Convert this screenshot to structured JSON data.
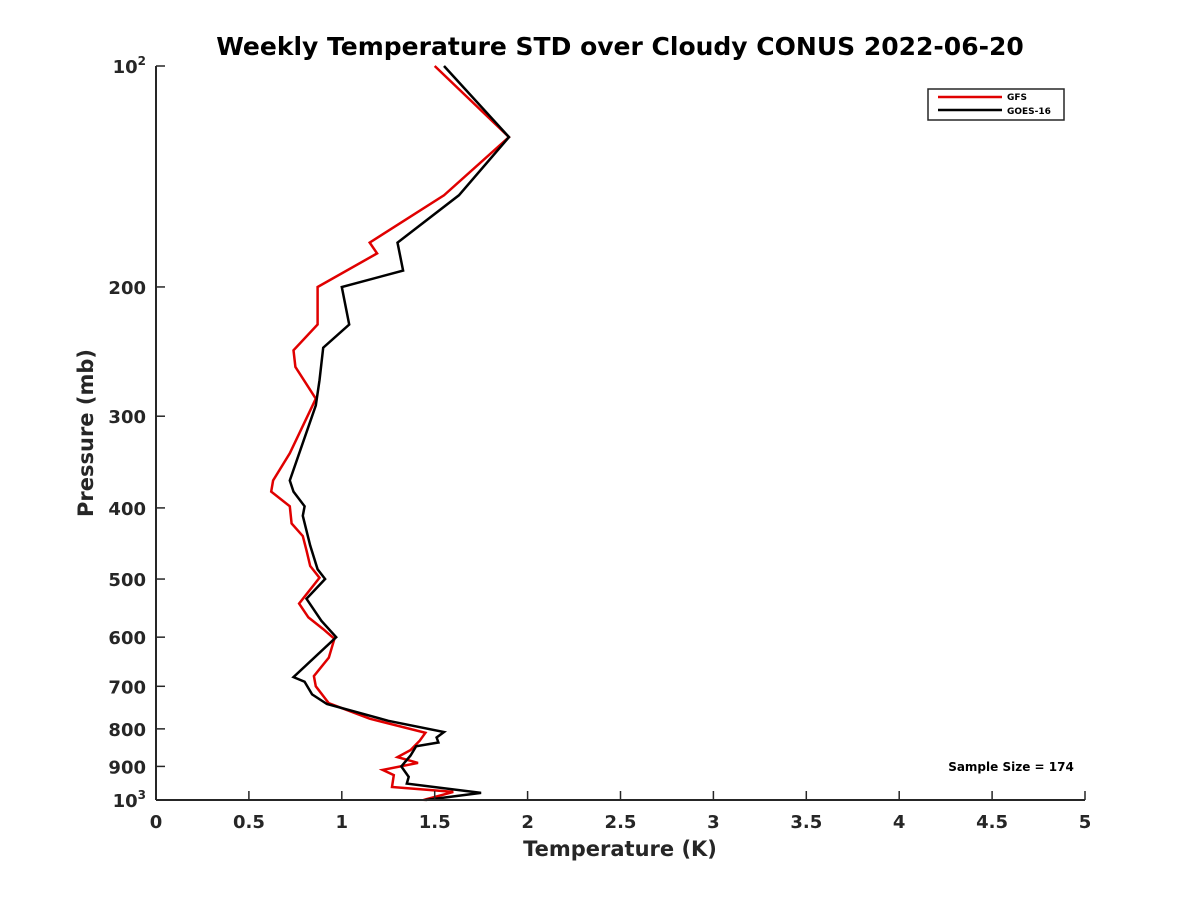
{
  "chart_data": {
    "type": "line",
    "title": "Weekly Temperature STD over Cloudy CONUS 2022-06-20",
    "xlabel": "Temperature (K)",
    "ylabel": "Pressure (mb)",
    "xlim": [
      0,
      5
    ],
    "ylim": [
      100,
      1000
    ],
    "y_scale": "log",
    "y_reversed": true,
    "x_ticks": [
      0,
      0.5,
      1,
      1.5,
      2,
      2.5,
      3,
      3.5,
      4,
      4.5,
      5
    ],
    "x_tick_labels": [
      "0",
      "0.5",
      "1",
      "1.5",
      "2",
      "2.5",
      "3",
      "3.5",
      "4",
      "4.5",
      "5"
    ],
    "y_ticks": [
      {
        "value": 100,
        "base": "10",
        "exp": "2"
      },
      {
        "value": 200,
        "label": "200"
      },
      {
        "value": 300,
        "label": "300"
      },
      {
        "value": 400,
        "label": "400"
      },
      {
        "value": 500,
        "label": "500"
      },
      {
        "value": 600,
        "label": "600"
      },
      {
        "value": 700,
        "label": "700"
      },
      {
        "value": 800,
        "label": "800"
      },
      {
        "value": 900,
        "label": "900"
      },
      {
        "value": 1000,
        "base": "10",
        "exp": "3"
      }
    ],
    "grid": false,
    "legend_position": "top-right",
    "annotation": "Sample Size = 174",
    "series": [
      {
        "name": "GFS",
        "color": "#e00000",
        "points": [
          [
            1.5,
            100
          ],
          [
            1.9,
            125
          ],
          [
            1.55,
            150
          ],
          [
            1.15,
            174
          ],
          [
            1.19,
            180
          ],
          [
            0.87,
            200
          ],
          [
            0.87,
            225
          ],
          [
            0.74,
            244
          ],
          [
            0.75,
            257
          ],
          [
            0.86,
            284
          ],
          [
            0.72,
            337
          ],
          [
            0.63,
            367
          ],
          [
            0.62,
            380
          ],
          [
            0.72,
            398
          ],
          [
            0.73,
            420
          ],
          [
            0.79,
            437
          ],
          [
            0.81,
            457
          ],
          [
            0.83,
            480
          ],
          [
            0.88,
            498
          ],
          [
            0.77,
            540
          ],
          [
            0.82,
            564
          ],
          [
            0.9,
            585
          ],
          [
            0.96,
            603
          ],
          [
            0.93,
            640
          ],
          [
            0.85,
            678
          ],
          [
            0.86,
            700
          ],
          [
            0.93,
            738
          ],
          [
            1.15,
            775
          ],
          [
            1.45,
            810
          ],
          [
            1.42,
            830
          ],
          [
            1.37,
            855
          ],
          [
            1.3,
            874
          ],
          [
            1.41,
            890
          ],
          [
            1.22,
            910
          ],
          [
            1.28,
            925
          ],
          [
            1.27,
            960
          ],
          [
            1.6,
            975
          ],
          [
            1.44,
            1000
          ]
        ]
      },
      {
        "name": "GOES-16",
        "color": "#000000",
        "points": [
          [
            1.55,
            100
          ],
          [
            1.9,
            125
          ],
          [
            1.63,
            150
          ],
          [
            1.3,
            174
          ],
          [
            1.33,
            190
          ],
          [
            1.0,
            200
          ],
          [
            1.04,
            225
          ],
          [
            0.9,
            242
          ],
          [
            0.88,
            268
          ],
          [
            0.86,
            290
          ],
          [
            0.72,
            367
          ],
          [
            0.74,
            380
          ],
          [
            0.8,
            398
          ],
          [
            0.79,
            410
          ],
          [
            0.83,
            450
          ],
          [
            0.87,
            485
          ],
          [
            0.91,
            500
          ],
          [
            0.81,
            532
          ],
          [
            0.89,
            570
          ],
          [
            0.97,
            600
          ],
          [
            0.74,
            680
          ],
          [
            0.8,
            690
          ],
          [
            0.84,
            718
          ],
          [
            0.92,
            740
          ],
          [
            1.25,
            780
          ],
          [
            1.55,
            808
          ],
          [
            1.51,
            822
          ],
          [
            1.52,
            835
          ],
          [
            1.4,
            845
          ],
          [
            1.37,
            870
          ],
          [
            1.32,
            900
          ],
          [
            1.36,
            930
          ],
          [
            1.35,
            950
          ],
          [
            1.75,
            978
          ],
          [
            1.45,
            1000
          ]
        ]
      }
    ]
  }
}
